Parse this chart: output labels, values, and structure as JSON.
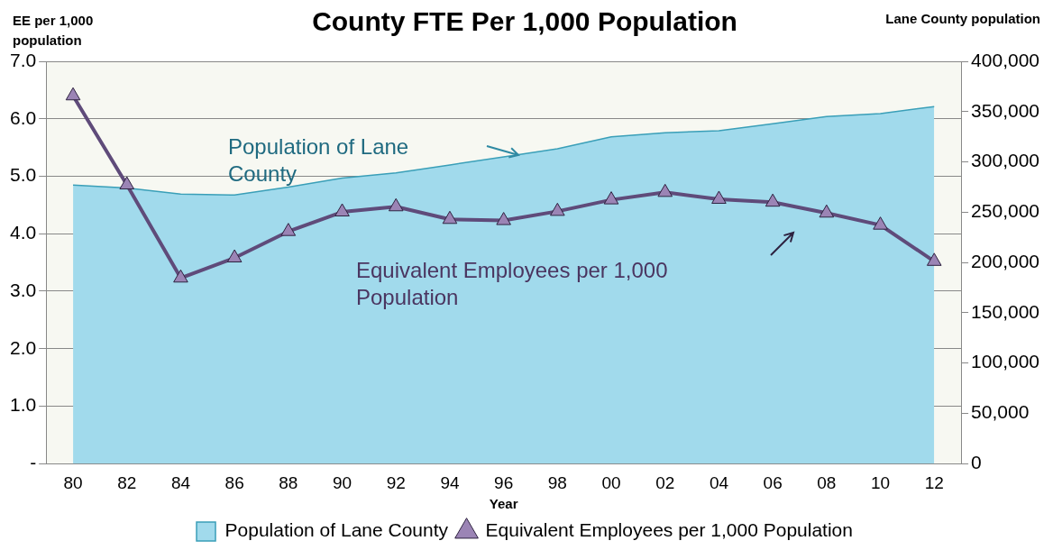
{
  "chart_data": {
    "type": "area",
    "title": "County FTE Per 1,000 Population",
    "xlabel": "Year",
    "ylabel": "EE per 1,000 population",
    "y2label": "Lane County population",
    "categories": [
      "80",
      "82",
      "84",
      "86",
      "88",
      "90",
      "92",
      "94",
      "96",
      "98",
      "00",
      "02",
      "04",
      "06",
      "08",
      "10",
      "12"
    ],
    "series": [
      {
        "name": "Population of Lane County",
        "axis": "y2",
        "color": "#a1daec",
        "values": [
          277000,
          274000,
          268000,
          267000,
          275000,
          284000,
          289000,
          297000,
          305000,
          313000,
          325000,
          329000,
          331000,
          338000,
          345000,
          348000,
          355000
        ]
      },
      {
        "name": "Equivalent Employees per 1,000 Population",
        "type": "line",
        "color": "#5f4b7a",
        "marker": "triangle",
        "values": [
          6.4,
          4.85,
          3.23,
          3.58,
          4.04,
          4.38,
          4.47,
          4.25,
          4.23,
          4.39,
          4.59,
          4.72,
          4.6,
          4.55,
          4.36,
          4.15,
          3.52
        ]
      }
    ],
    "ylim": [
      0,
      7
    ],
    "yticks": [
      {
        "value": 0,
        "label": "-"
      },
      {
        "value": 1,
        "label": "1.0"
      },
      {
        "value": 2,
        "label": "2.0"
      },
      {
        "value": 3,
        "label": "3.0"
      },
      {
        "value": 4,
        "label": "4.0"
      },
      {
        "value": 5,
        "label": "5.0"
      },
      {
        "value": 6,
        "label": "6.0"
      },
      {
        "value": 7,
        "label": "7.0"
      }
    ],
    "y2lim": [
      0,
      400000
    ],
    "y2ticks": [
      0,
      {
        "value": 50000,
        "label": "50,000"
      },
      {
        "value": 100000,
        "label": "100,000"
      },
      {
        "value": 150000,
        "label": "150,000"
      },
      {
        "value": 200000,
        "label": "200,000"
      },
      {
        "value": 250000,
        "label": "250,000"
      },
      {
        "value": 300000,
        "label": "300,000"
      },
      {
        "value": 350000,
        "label": "350,000"
      },
      {
        "value": 400000,
        "label": "400,000"
      }
    ],
    "grid": "y",
    "legend": "bottom",
    "annotations": [
      "Population of Lane County",
      "Equivalent Employees per 1,000 Population"
    ]
  }
}
